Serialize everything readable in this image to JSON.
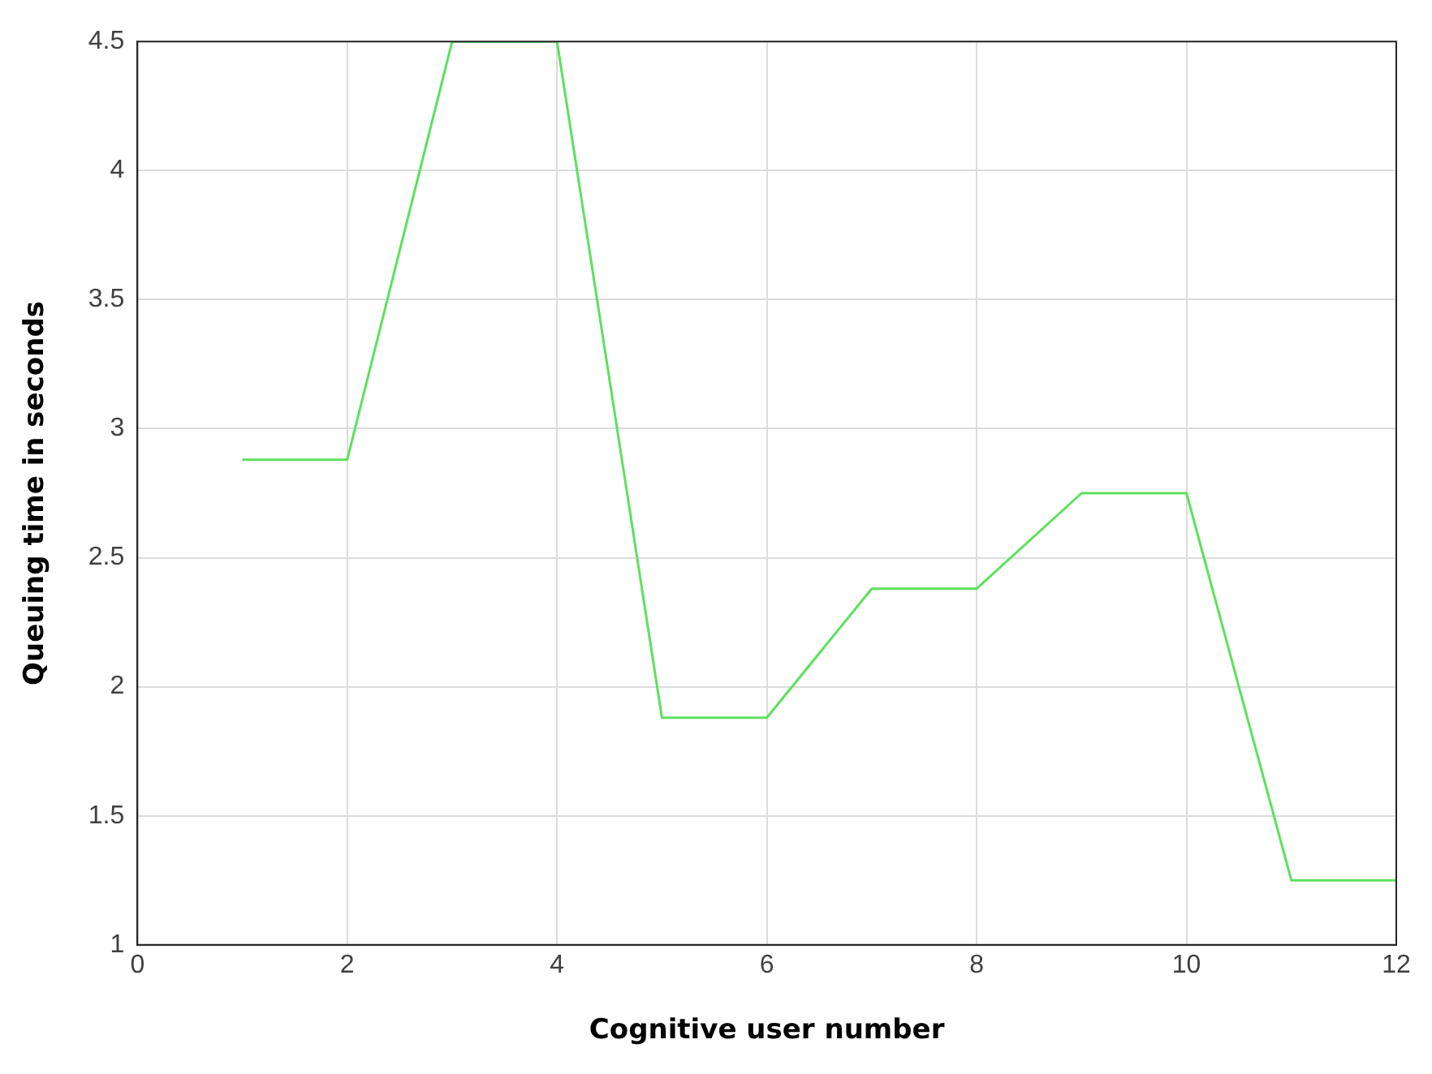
{
  "chart_data": {
    "type": "line",
    "xlabel": "Cognitive user number",
    "ylabel": "Queuing time in seconds",
    "x": [
      1,
      2,
      3,
      4,
      5,
      6,
      7,
      8,
      9,
      10,
      11,
      12
    ],
    "series": [
      {
        "color": "#5ee05e",
        "values": [
          2.88,
          2.88,
          4.5,
          4.5,
          1.88,
          1.88,
          2.38,
          2.38,
          2.75,
          2.75,
          1.25,
          1.25
        ]
      }
    ],
    "xlim": [
      0,
      12
    ],
    "xticks": [
      0,
      2,
      4,
      6,
      8,
      10,
      12
    ],
    "ylim": [
      1,
      4.5
    ],
    "yticks": [
      1,
      1.5,
      2,
      2.5,
      3,
      3.5,
      4,
      4.5
    ],
    "grid": true,
    "legend": false,
    "marker": "none",
    "line_style": "solid"
  }
}
